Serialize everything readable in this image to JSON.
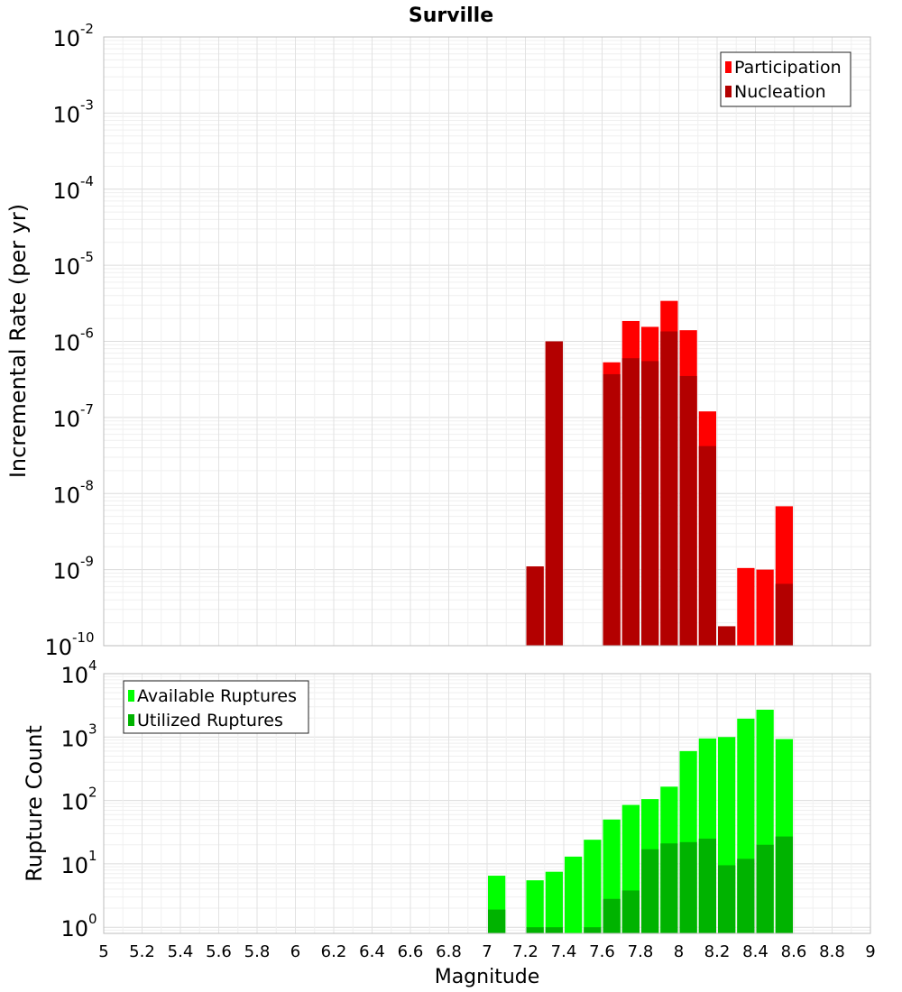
{
  "title": "Surville",
  "xlabel": "Magnitude",
  "x_ticks": [
    "5",
    "5.2",
    "5.4",
    "5.6",
    "5.8",
    "6",
    "6.2",
    "6.4",
    "6.6",
    "6.8",
    "7",
    "7.2",
    "7.4",
    "7.6",
    "7.8",
    "8",
    "8.2",
    "8.4",
    "8.6",
    "8.8",
    "9"
  ],
  "colors": {
    "participation": "#ff0000",
    "nucleation": "#b30000",
    "available": "#00ff00",
    "utilized": "#00b300"
  },
  "chart_data": [
    {
      "type": "bar",
      "yscale": "log",
      "ylabel": "Incremental Rate (per yr)",
      "xlim": [
        5,
        9
      ],
      "ylim": [
        1e-10,
        0.01
      ],
      "bar_width": 0.1,
      "grid": true,
      "legend_position": "top-right",
      "y_ticks": [
        {
          "exp": "-10",
          "value": 1e-10
        },
        {
          "exp": "-9",
          "value": 1e-09
        },
        {
          "exp": "-8",
          "value": 1e-08
        },
        {
          "exp": "-7",
          "value": 1e-07
        },
        {
          "exp": "-6",
          "value": 1e-06
        },
        {
          "exp": "-5",
          "value": 1e-05
        },
        {
          "exp": "-4",
          "value": 0.0001
        },
        {
          "exp": "-3",
          "value": 0.001
        },
        {
          "exp": "-2",
          "value": 0.01
        }
      ],
      "series": [
        {
          "name": "Participation",
          "x": [
            7.25,
            7.35,
            7.65,
            7.75,
            7.85,
            7.95,
            8.05,
            8.15,
            8.25,
            8.35,
            8.45,
            8.55
          ],
          "values": [
            1.1e-09,
            1e-06,
            5.3e-07,
            1.85e-06,
            1.55e-06,
            3.4e-06,
            1.4e-06,
            1.2e-07,
            1.8e-10,
            1.05e-09,
            1e-09,
            6.8e-09
          ]
        },
        {
          "name": "Nucleation",
          "x": [
            7.25,
            7.35,
            7.65,
            7.75,
            7.85,
            7.95,
            8.05,
            8.15,
            8.25,
            8.35,
            8.45,
            8.55
          ],
          "values": [
            1.1e-09,
            1e-06,
            3.7e-07,
            6e-07,
            5.5e-07,
            1.35e-06,
            3.5e-07,
            4.2e-08,
            1.8e-10,
            null,
            null,
            6.5e-10
          ]
        }
      ]
    },
    {
      "type": "bar",
      "yscale": "log",
      "ylabel": "Rupture Count",
      "xlim": [
        5,
        9
      ],
      "ylim": [
        0.8,
        10000
      ],
      "bar_width": 0.1,
      "grid": true,
      "legend_position": "top-left",
      "y_ticks": [
        {
          "exp": "0",
          "value": 1
        },
        {
          "exp": "1",
          "value": 10
        },
        {
          "exp": "2",
          "value": 100
        },
        {
          "exp": "3",
          "value": 1000
        },
        {
          "exp": "4",
          "value": 10000
        }
      ],
      "series": [
        {
          "name": "Available Ruptures",
          "x": [
            7.05,
            7.25,
            7.35,
            7.45,
            7.55,
            7.65,
            7.75,
            7.85,
            7.95,
            8.05,
            8.15,
            8.25,
            8.35,
            8.45,
            8.55
          ],
          "values": [
            6.5,
            5.5,
            7.5,
            13,
            24,
            50,
            85,
            105,
            165,
            600,
            950,
            1000,
            1950,
            2700,
            930
          ]
        },
        {
          "name": "Utilized Ruptures",
          "x": [
            7.05,
            7.25,
            7.35,
            7.45,
            7.55,
            7.65,
            7.75,
            7.85,
            7.95,
            8.05,
            8.15,
            8.25,
            8.35,
            8.45,
            8.55
          ],
          "values": [
            1.9,
            1.0,
            1.0,
            null,
            1.0,
            2.8,
            3.8,
            17,
            21,
            22,
            25,
            9.5,
            12,
            20,
            27
          ]
        }
      ]
    }
  ]
}
